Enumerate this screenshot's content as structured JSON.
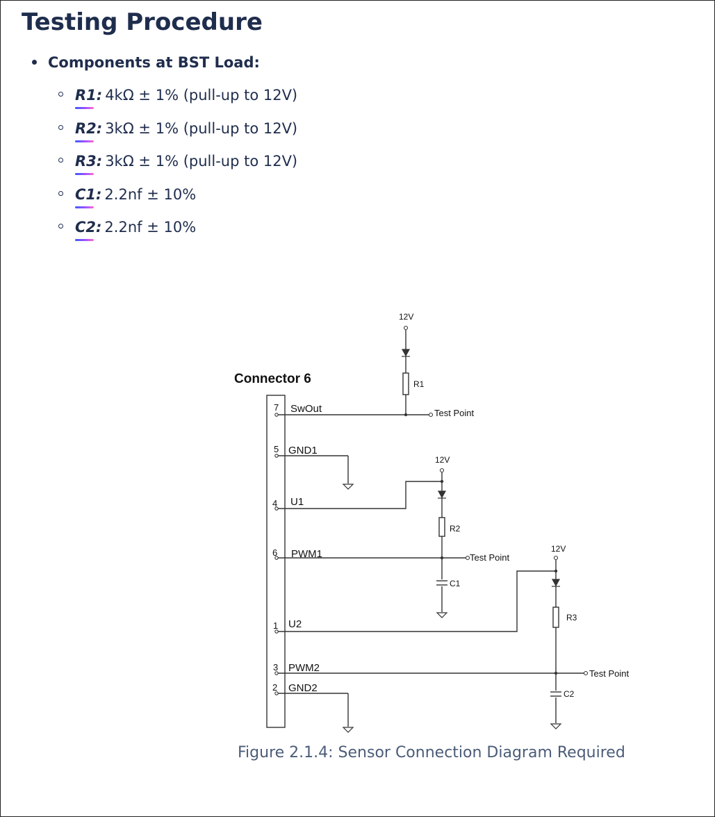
{
  "page_title": "Testing Procedure",
  "main_item": {
    "label": "Components at BST Load:"
  },
  "components": [
    {
      "key": "R1:",
      "value": "4kΩ ± 1% (pull-up to 12V)"
    },
    {
      "key": "R2:",
      "value": "3kΩ ± 1% (pull-up to 12V)"
    },
    {
      "key": "R3:",
      "value": "3kΩ ± 1% (pull-up to 12V)"
    },
    {
      "key": "C1:",
      "value": "2.2nf ± 10%"
    },
    {
      "key": "C2:",
      "value": "2.2nf ± 10%"
    }
  ],
  "diagram": {
    "connector_title": "Connector 6",
    "pins": [
      {
        "number": "7",
        "label": "SwOut"
      },
      {
        "number": "5",
        "label": "GND1"
      },
      {
        "number": "4",
        "label": "U1"
      },
      {
        "number": "6",
        "label": "PWM1"
      },
      {
        "number": "1",
        "label": "U2"
      },
      {
        "number": "3",
        "label": "PWM2"
      },
      {
        "number": "2",
        "label": "GND2"
      }
    ],
    "supply_labels": [
      "12V",
      "12V",
      "12V"
    ],
    "resistor_labels": [
      "R1",
      "R2",
      "R3"
    ],
    "capacitor_labels": [
      "C1",
      "C2"
    ],
    "test_point_labels": [
      "Test Point",
      "Test Point",
      "Test Point"
    ]
  },
  "caption": "Figure 2.1.4: Sensor Connection Diagram Required"
}
